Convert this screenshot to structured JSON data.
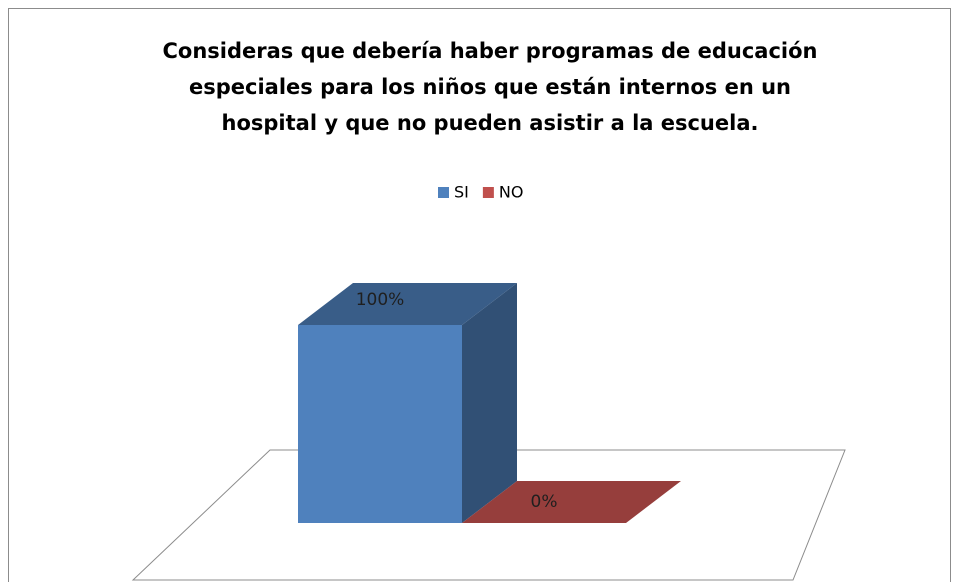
{
  "chart_data": {
    "type": "bar3d",
    "title": [
      "Consideras que debería haber programas de educación",
      "especiales para los niños que están internos en un",
      "hospital y que no pueden asistir a la escuela."
    ],
    "categories": [
      null
    ],
    "series": [
      {
        "name": "SI",
        "color": "#4f81bd",
        "values": [
          100
        ],
        "value_labels": [
          "100%"
        ]
      },
      {
        "name": "NO",
        "color": "#c0504d",
        "values": [
          0
        ],
        "value_labels": [
          "0%"
        ]
      }
    ],
    "ylim": [
      0,
      100
    ],
    "legend": "top"
  }
}
